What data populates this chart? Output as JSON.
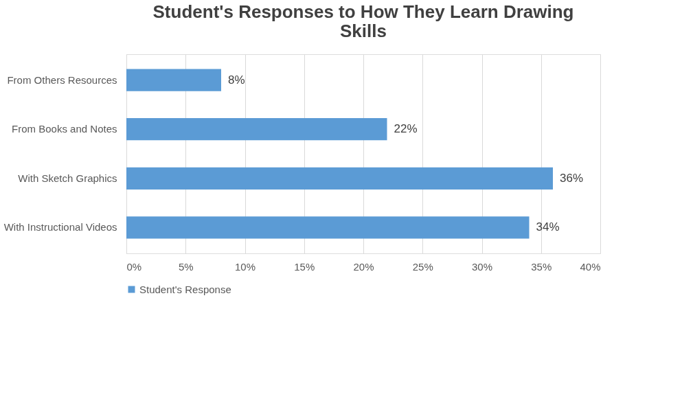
{
  "chart_data": {
    "type": "bar",
    "orientation": "horizontal",
    "title": "Student's Responses to How They Learn Drawing Skills",
    "categories": [
      "From Others Resources",
      "From Books and Notes",
      "With Sketch Graphics",
      "With Instructional Videos"
    ],
    "series": [
      {
        "name": "Student's Response",
        "color": "#5b9bd5",
        "values": [
          8,
          22,
          36,
          34
        ],
        "value_labels": [
          "8%",
          "22%",
          "36%",
          "34%"
        ]
      }
    ],
    "xlim": [
      0,
      40
    ],
    "xticks": [
      {
        "value": 0,
        "label": "0%"
      },
      {
        "value": 5,
        "label": "5%"
      },
      {
        "value": 10,
        "label": "10%"
      },
      {
        "value": 15,
        "label": "15%"
      },
      {
        "value": 20,
        "label": "20%"
      },
      {
        "value": 25,
        "label": "25%"
      },
      {
        "value": 30,
        "label": "30%"
      },
      {
        "value": 35,
        "label": "35%"
      },
      {
        "value": 40,
        "label": "40%"
      }
    ],
    "grid": "x",
    "legend": "bottom"
  }
}
